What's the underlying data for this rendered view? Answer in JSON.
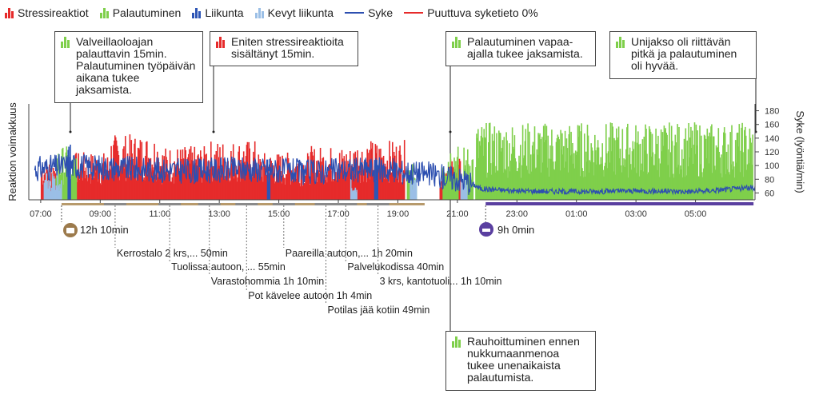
{
  "legend": [
    {
      "label": "Stressireaktiot",
      "kind": "bar",
      "color": "#e62b2b"
    },
    {
      "label": "Palautuminen",
      "kind": "bar",
      "color": "#7fcf4b"
    },
    {
      "label": "Liikunta",
      "kind": "bar",
      "color": "#2d55b5"
    },
    {
      "label": "Kevyt liikunta",
      "kind": "bar",
      "color": "#9bbfe6"
    },
    {
      "label": "Syke",
      "kind": "line",
      "color": "#2d4fb0"
    },
    {
      "label": "Puuttuva syketieto 0%",
      "kind": "line",
      "color": "#e62b2b"
    }
  ],
  "callouts": [
    {
      "id": "c1",
      "color": "#7fcf4b",
      "text": "Valveillaoloajan palauttavin 15min. Palautuminen työpäivän aikana tukee jaksamista."
    },
    {
      "id": "c2",
      "color": "#e62b2b",
      "text": "Eniten stressireaktioita sisältänyt 15min."
    },
    {
      "id": "c3",
      "color": "#7fcf4b",
      "text": "Palautuminen vapaa-ajalla tukee jaksamista."
    },
    {
      "id": "c4",
      "color": "#7fcf4b",
      "text": "Unijakso oli riittävän pitkä ja palautuminen oli hyvää."
    },
    {
      "id": "c5",
      "color": "#7fcf4b",
      "text": "Rauhoittuminen ennen nukkumaanmenoa tukee unenaikaista palautumista."
    }
  ],
  "summary": {
    "work_duration": "12h 10min",
    "sleep_duration": "9h 0min",
    "work_color": "#9c7a4c",
    "sleep_color": "#5a3fa0"
  },
  "activities": [
    {
      "label": "Kerrostalo 2 krs,... 50min",
      "time": "09:30"
    },
    {
      "label": "Tuolissa autoon, ... 55min",
      "time": "11:20"
    },
    {
      "label": "Varastohommia 1h 10min",
      "time": "12:40"
    },
    {
      "label": "Pot kävelee autoon 1h 4min",
      "time": "13:55"
    },
    {
      "label": "Paareilla autoon,... 1h 20min",
      "time": "15:10"
    },
    {
      "label": "Potilas jää kotiin 49min",
      "time": "16:35"
    },
    {
      "label": "Palvelukodissa 40min",
      "time": "17:15"
    },
    {
      "label": "3 krs, kantotuoli... 1h 10min",
      "time": "18:20"
    }
  ],
  "chart_data": {
    "type": "bar",
    "x_tick_labels": [
      "07:00",
      "09:00",
      "11:00",
      "13:00",
      "15:00",
      "17:00",
      "19:00",
      "21:00",
      "23:00",
      "01:00",
      "03:00",
      "05:00"
    ],
    "y_left_label": "Reaktion voimakkuus",
    "y_right_label": "Syke (lyöntiä/min)",
    "y_right_ticks": [
      60,
      80,
      100,
      120,
      140,
      160,
      180
    ],
    "y_right_range": [
      50,
      190
    ],
    "x_range_hours": [
      6.6,
      31.0
    ],
    "series": [
      {
        "name": "Stressireaktiot",
        "color": "#e62b2b",
        "segments": [
          [
            7.0,
            7.5,
            0.35
          ],
          [
            8.1,
            9.3,
            0.4
          ],
          [
            9.3,
            11.0,
            0.55
          ],
          [
            11.0,
            12.5,
            0.45
          ],
          [
            12.5,
            14.3,
            0.5
          ],
          [
            14.3,
            16.0,
            0.4
          ],
          [
            16.0,
            17.5,
            0.45
          ],
          [
            17.5,
            19.2,
            0.5
          ],
          [
            20.4,
            21.1,
            0.35
          ]
        ]
      },
      {
        "name": "Palautuminen",
        "color": "#7fcf4b",
        "segments": [
          [
            7.5,
            7.9,
            0.45
          ],
          [
            8.0,
            8.2,
            0.4
          ],
          [
            19.3,
            19.6,
            0.3
          ],
          [
            20.5,
            21.0,
            0.5
          ],
          [
            21.2,
            21.5,
            0.45
          ],
          [
            21.6,
            30.9,
            0.65
          ]
        ]
      },
      {
        "name": "Liikunta",
        "color": "#2d55b5",
        "segments": [
          [
            7.9,
            8.0,
            0.55
          ],
          [
            14.6,
            14.7,
            0.4
          ],
          [
            18.2,
            18.3,
            0.35
          ]
        ]
      },
      {
        "name": "Kevyt liikunta",
        "color": "#9bbfe6",
        "segments": [
          [
            7.1,
            7.7,
            0.25
          ],
          [
            17.4,
            17.6,
            0.2
          ],
          [
            19.4,
            19.6,
            0.2
          ],
          [
            21.1,
            21.3,
            0.2
          ]
        ]
      }
    ],
    "heart_rate": {
      "name": "Syke",
      "color": "#2d4fb0",
      "hours": [
        6.8,
        8.0,
        10.0,
        12.0,
        14.0,
        16.0,
        18.0,
        20.0,
        21.3,
        21.8,
        23.0,
        25.0,
        27.0,
        29.0,
        31.0
      ],
      "bpm": [
        95,
        100,
        95,
        92,
        95,
        90,
        95,
        88,
        78,
        66,
        63,
        62,
        63,
        62,
        68
      ]
    }
  }
}
